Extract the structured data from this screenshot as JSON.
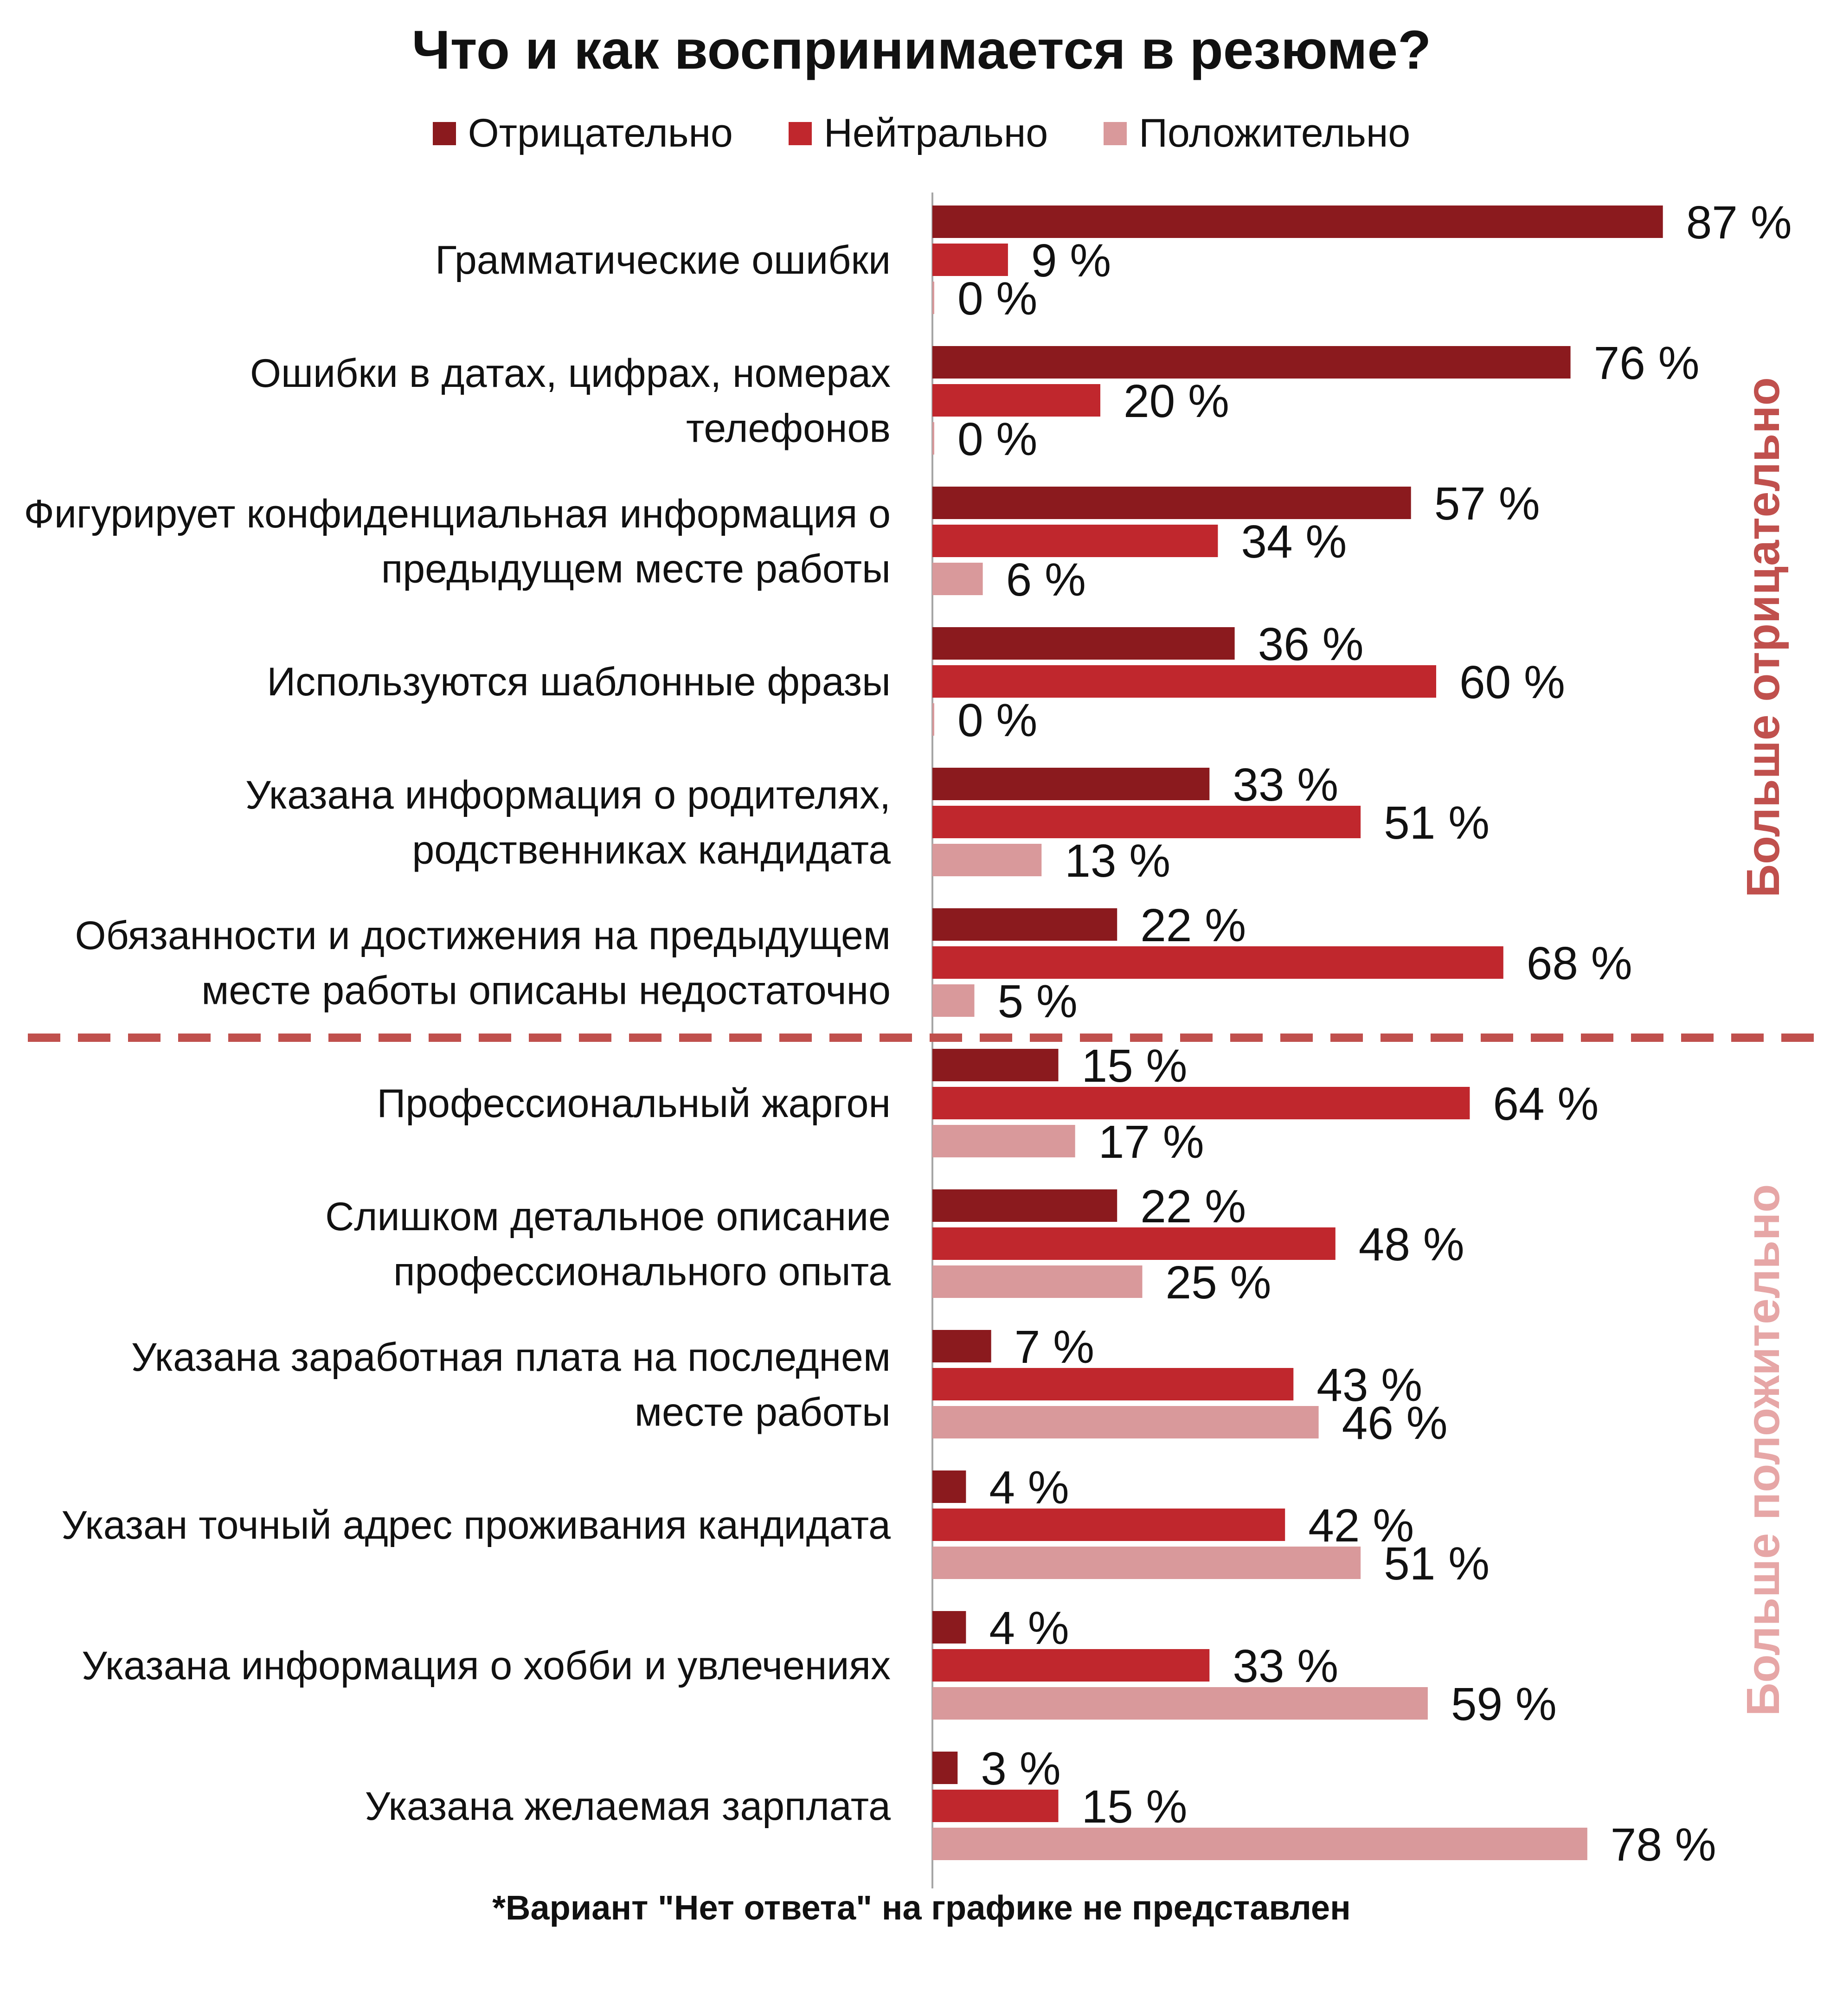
{
  "chart_data": {
    "type": "bar",
    "orientation": "horizontal",
    "title": "Что и как воспринимается в резюме?",
    "value_suffix": " %",
    "xlim": [
      0,
      100
    ],
    "legend_position": "top",
    "grid": false,
    "series": [
      {
        "name": "Отрицательно",
        "color": "#8B1A1E"
      },
      {
        "name": "Нейтрально",
        "color": "#C0272D"
      },
      {
        "name": "Положительно",
        "color": "#D9999B"
      }
    ],
    "categories": [
      {
        "label": "Грамматические ошибки",
        "values": [
          87,
          9,
          0
        ]
      },
      {
        "label": "Ошибки в датах, цифрах, номерах телефонов",
        "values": [
          76,
          20,
          0
        ]
      },
      {
        "label": "Фигурирует конфиденциальная информация о предыдущем месте работы",
        "values": [
          57,
          34,
          6
        ]
      },
      {
        "label": "Используются шаблонные фразы",
        "values": [
          36,
          60,
          0
        ]
      },
      {
        "label": "Указана информация о родителях, родственниках кандидата",
        "values": [
          33,
          51,
          13
        ]
      },
      {
        "label": "Обязанности и достижения на предыдущем месте работы описаны недостаточно",
        "values": [
          22,
          68,
          5
        ]
      },
      {
        "label": "Профессиональный жаргон",
        "values": [
          15,
          64,
          17
        ]
      },
      {
        "label": "Слишком детальное описание профессионального опыта",
        "values": [
          22,
          48,
          25
        ]
      },
      {
        "label": "Указана заработная плата на последнем месте работы",
        "values": [
          7,
          43,
          46
        ]
      },
      {
        "label": "Указан точный адрес проживания кандидата",
        "values": [
          4,
          42,
          51
        ]
      },
      {
        "label": "Указана информация о хобби и увлечениях",
        "values": [
          4,
          33,
          59
        ]
      },
      {
        "label": "Указана желаемая зарплата",
        "values": [
          3,
          15,
          78
        ]
      }
    ],
    "divider_after_index": 5,
    "side_labels": [
      {
        "text": "Больше отрицательно",
        "color": "#C0504D"
      },
      {
        "text": "Больше положительно",
        "color": "#E6A6A6"
      }
    ],
    "footnote": "*Вариант \"Нет ответа\" на графике не представлен"
  }
}
